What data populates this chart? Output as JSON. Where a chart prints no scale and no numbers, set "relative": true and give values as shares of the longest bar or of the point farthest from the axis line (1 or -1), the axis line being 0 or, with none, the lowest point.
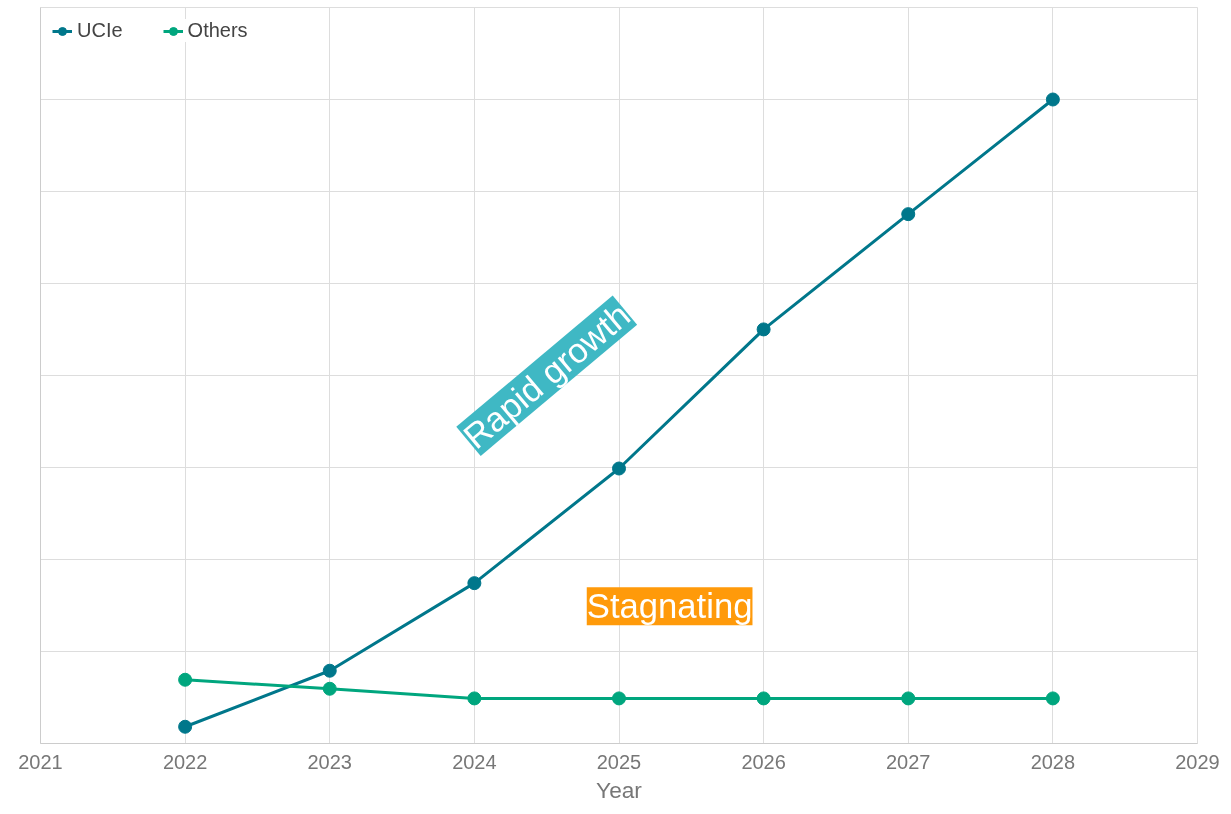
{
  "chart_data": {
    "type": "line",
    "xlabel": "Year",
    "relative": true,
    "x": [
      2022,
      2023,
      2024,
      2025,
      2026,
      2027,
      2028
    ],
    "xlim": [
      2021,
      2029
    ],
    "xticks": [
      2021,
      2022,
      2023,
      2024,
      2025,
      2026,
      2027,
      2028,
      2029
    ],
    "series": [
      {
        "name": "UCIe",
        "color": "#00778b",
        "values": [
          0.026,
          0.113,
          0.249,
          0.427,
          0.643,
          0.822,
          1
        ]
      },
      {
        "name": "Others",
        "color": "#00a67e",
        "values": [
          0.099,
          0.085,
          0.07,
          0.07,
          0.07,
          0.07,
          0.07
        ]
      }
    ],
    "annotations": [
      "Rapid growth",
      "Stagnating"
    ],
    "marker": "circle",
    "line_style": "solid",
    "grid": true,
    "legend": "top left"
  }
}
